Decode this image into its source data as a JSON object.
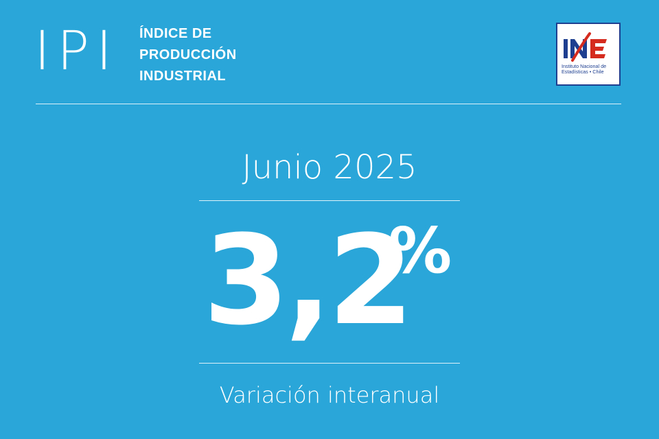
{
  "header": {
    "mark": "IPI",
    "title_lines": [
      "ÍNDICE DE",
      "PRODUCCIÓN",
      "INDUSTRIAL"
    ]
  },
  "logo": {
    "wordmark": "INE",
    "caption_lines": [
      "Instituto Nacional de",
      "Estadísticas • Chile"
    ],
    "colors": {
      "blue": "#1e3f8f",
      "red": "#d52b1e",
      "white": "#ffffff"
    }
  },
  "main": {
    "period": "Junio 2025",
    "value": "3,2",
    "unit": "%",
    "caption": "Variación interanual"
  },
  "colors": {
    "background": "#2aa7d8",
    "text": "#ffffff"
  }
}
